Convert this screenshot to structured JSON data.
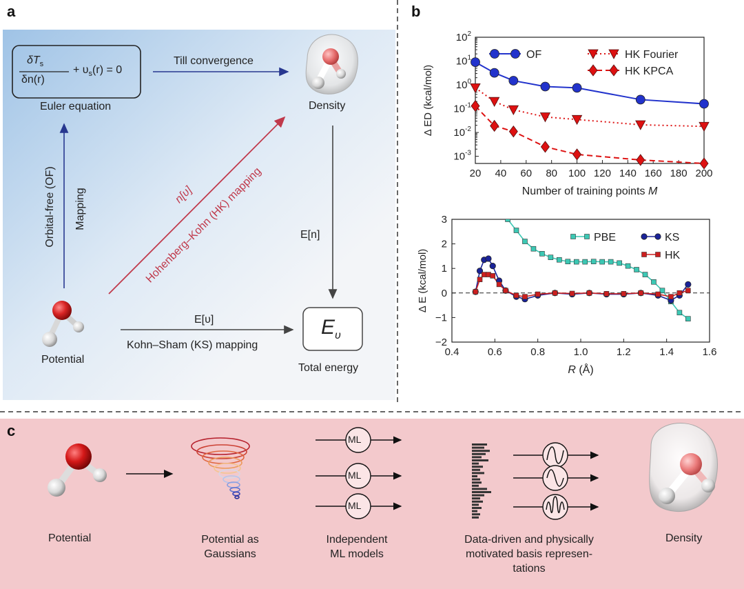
{
  "panel_a": {
    "letter": "a",
    "euler_caption": "Euler equation",
    "eq_top": "δT",
    "eq_top_sub": "s",
    "eq_bottom": "δn(r)",
    "eq_rhs": "+ υ",
    "eq_rhs_sub": "s",
    "eq_rhs_tail": "(r) = 0",
    "till_convergence": "Till convergence",
    "density": "Density",
    "orbital_free": "Orbital-free (OF)",
    "mapping": "Mapping",
    "n_v": "n[υ]",
    "hk_mapping": "Hohenberg–Kohn (HK) mapping",
    "e_n": "E[n]",
    "e_v": "E[υ]",
    "ks_mapping": "Kohn–Sham (KS) mapping",
    "potential": "Potential",
    "energy_symbol": "E",
    "energy_sub": "υ",
    "total_energy": "Total energy",
    "colors": {
      "mapping_arrow": "#27378f",
      "hk_arrow": "#c0394b",
      "energy_arrow": "#444444"
    }
  },
  "panel_b": {
    "letter": "b"
  },
  "panel_c": {
    "letter": "c",
    "steps": [
      "Potential",
      "Potential as Gaussians",
      "Independent ML models",
      "Data-driven and physically motivated basis represen- tations",
      "Density"
    ],
    "step_lines": {
      "gauss": [
        "Potential as",
        "Gaussians"
      ],
      "ml": [
        "Independent",
        "ML models"
      ],
      "basis": [
        "Data-driven and physically",
        "motivated basis represen-",
        "tations"
      ]
    },
    "ml_label": "ML",
    "background": "#f3c9cc"
  },
  "chart_data": [
    {
      "type": "line",
      "title": "",
      "xlabel": "Number of training points M",
      "ylabel": "Δ E_D (kcal/mol)",
      "yscale": "log",
      "xlim": [
        20,
        200
      ],
      "ylim": [
        0.0005,
        100
      ],
      "x_ticks": [
        20,
        40,
        60,
        80,
        100,
        120,
        140,
        160,
        180,
        200
      ],
      "y_ticks": [
        {
          "value": 100,
          "base": "10",
          "exp": "2"
        },
        {
          "value": 10,
          "base": "10",
          "exp": "1"
        },
        {
          "value": 1,
          "base": "10",
          "exp": "0"
        },
        {
          "value": 0.1,
          "base": "10",
          "exp": "-1"
        },
        {
          "value": 0.01,
          "base": "10",
          "exp": "-2"
        },
        {
          "value": 0.001,
          "base": "10",
          "exp": "-3"
        }
      ],
      "legend_position": "top",
      "series": [
        {
          "name": "OF",
          "color": "#2233cc",
          "line": "solid",
          "marker": "circle",
          "x": [
            20,
            35,
            50,
            75,
            100,
            150,
            200
          ],
          "y": [
            9.0,
            3.2,
            1.5,
            0.85,
            0.75,
            0.24,
            0.16
          ]
        },
        {
          "name": "HK Fourier",
          "color": "#dd1111",
          "line": "dotted",
          "marker": "triangle-down",
          "x": [
            20,
            35,
            50,
            75,
            100,
            150,
            200
          ],
          "y": [
            0.75,
            0.2,
            0.09,
            0.045,
            0.035,
            0.021,
            0.018
          ]
        },
        {
          "name": "HK KPCA",
          "color": "#dd1111",
          "line": "dashed",
          "marker": "diamond",
          "x": [
            20,
            35,
            50,
            75,
            100,
            150,
            200
          ],
          "y": [
            0.13,
            0.019,
            0.011,
            0.0025,
            0.0012,
            0.0007,
            0.0005
          ]
        }
      ]
    },
    {
      "type": "line",
      "title": "",
      "xlabel": "R (Å)",
      "ylabel": "Δ E (kcal/mol)",
      "xlim": [
        0.4,
        1.6
      ],
      "ylim": [
        -2,
        3
      ],
      "x_ticks": [
        0.4,
        0.6,
        0.8,
        1.0,
        1.2,
        1.4,
        1.6
      ],
      "y_ticks": [
        -2,
        -1,
        0,
        1,
        2,
        3
      ],
      "reference_line": 0,
      "legend_position": "top",
      "series": [
        {
          "name": "PBE",
          "color": "#3cc8b4",
          "marker": "square",
          "x": [
            0.66,
            0.7,
            0.74,
            0.78,
            0.82,
            0.86,
            0.9,
            0.94,
            0.98,
            1.02,
            1.06,
            1.1,
            1.14,
            1.18,
            1.22,
            1.26,
            1.3,
            1.34,
            1.38,
            1.42,
            1.46,
            1.5
          ],
          "y": [
            3.0,
            2.55,
            2.1,
            1.8,
            1.6,
            1.45,
            1.35,
            1.28,
            1.27,
            1.27,
            1.28,
            1.27,
            1.27,
            1.22,
            1.1,
            0.95,
            0.75,
            0.45,
            0.1,
            -0.35,
            -0.8,
            -1.05
          ]
        },
        {
          "name": "KS",
          "color": "#1a2399",
          "marker": "circle",
          "x": [
            0.51,
            0.53,
            0.55,
            0.57,
            0.59,
            0.62,
            0.65,
            0.7,
            0.74,
            0.8,
            0.88,
            0.96,
            1.04,
            1.12,
            1.2,
            1.28,
            1.36,
            1.42,
            1.46,
            1.5
          ],
          "y": [
            0.05,
            0.9,
            1.35,
            1.4,
            1.1,
            0.5,
            0.1,
            -0.15,
            -0.25,
            -0.1,
            0.0,
            -0.05,
            0.0,
            -0.05,
            -0.05,
            0.0,
            -0.1,
            -0.3,
            -0.1,
            0.35
          ]
        },
        {
          "name": "HK",
          "color": "#cc1f1f",
          "marker": "square",
          "x": [
            0.51,
            0.53,
            0.55,
            0.57,
            0.59,
            0.62,
            0.65,
            0.7,
            0.74,
            0.8,
            0.88,
            0.96,
            1.04,
            1.12,
            1.2,
            1.28,
            1.36,
            1.42,
            1.46,
            1.5
          ],
          "y": [
            0.05,
            0.55,
            0.75,
            0.75,
            0.7,
            0.35,
            0.1,
            -0.1,
            -0.15,
            -0.05,
            0.0,
            -0.02,
            0.0,
            -0.03,
            -0.03,
            0.0,
            -0.05,
            -0.15,
            0.0,
            0.1
          ]
        }
      ]
    }
  ]
}
